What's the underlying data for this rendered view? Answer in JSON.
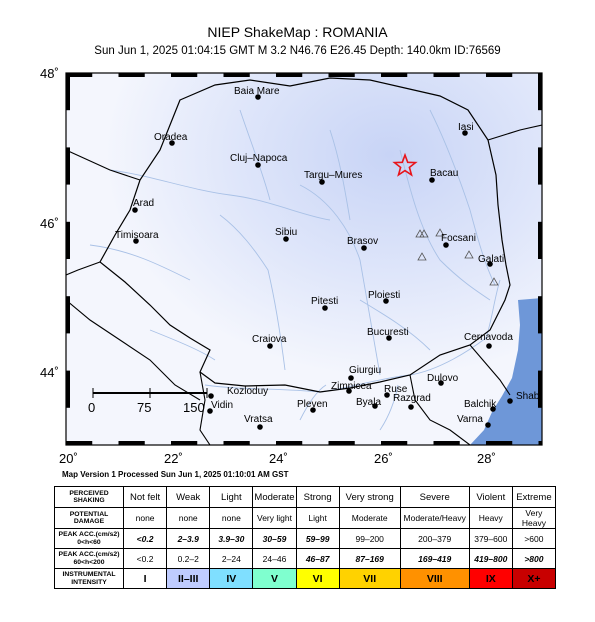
{
  "header": {
    "title": "NIEP ShakeMap : ROMANIA",
    "subtitle": "Sun Jun  1, 2025 01:04:15 GMT   M 3.2   N46.76 E26.45   Depth: 140.0km   ID:76569"
  },
  "axes": {
    "lat_labels": [
      "48˚",
      "46˚",
      "44˚"
    ],
    "lon_labels": [
      "20˚",
      "22˚",
      "24˚",
      "26˚",
      "28˚"
    ]
  },
  "scale_bar": {
    "labels": [
      "0",
      "75",
      "150"
    ]
  },
  "cities": [
    {
      "name": "Baia Mare"
    },
    {
      "name": "Oradea"
    },
    {
      "name": "Cluj–Napoca"
    },
    {
      "name": "Targu–Mures"
    },
    {
      "name": "Iasi"
    },
    {
      "name": "Bacau"
    },
    {
      "name": "Arad"
    },
    {
      "name": "Timisoara"
    },
    {
      "name": "Sibiu"
    },
    {
      "name": "Brasov"
    },
    {
      "name": "Focsani"
    },
    {
      "name": "Galati"
    },
    {
      "name": "Ploiesti"
    },
    {
      "name": "Pitesti"
    },
    {
      "name": "Bucuresti"
    },
    {
      "name": "Craiova"
    },
    {
      "name": "Cernavoda"
    },
    {
      "name": "Giurgiu"
    },
    {
      "name": "Zimnicea"
    },
    {
      "name": "Ruse"
    },
    {
      "name": "Dulovo"
    },
    {
      "name": "Kozloduy"
    },
    {
      "name": "Vidin"
    },
    {
      "name": "Pleven"
    },
    {
      "name": "Byala"
    },
    {
      "name": "Razgrad"
    },
    {
      "name": "Shabla"
    },
    {
      "name": "Balchik"
    },
    {
      "name": "Vratsa"
    },
    {
      "name": "Varna"
    }
  ],
  "epicenter": {
    "marker": "star-icon",
    "color": "#e8141a"
  },
  "map_version": "Map Version 1 Processed Sun Jun  1, 2025 01:10:01 AM GST",
  "legend": {
    "row_headers": {
      "perceived": "PERCEIVED SHAKING",
      "damage": "POTENTIAL DAMAGE",
      "acc1": "PEAK ACC.(cm/s2) 0<h<60",
      "acc2": "PEAK ACC.(cm/s2) 60<h<200",
      "intensity": "INSTRUMENTAL INTENSITY"
    },
    "columns": [
      {
        "shaking": "Not felt",
        "damage": "none",
        "acc1": "<0.2",
        "acc2": "<0.2",
        "intensity": "I",
        "color": "#ffffff"
      },
      {
        "shaking": "Weak",
        "damage": "none",
        "acc1": "2–3.9",
        "acc2": "0.2–2",
        "intensity": "II–III",
        "color": "#bfccff"
      },
      {
        "shaking": "Light",
        "damage": "none",
        "acc1": "3.9–30",
        "acc2": "2–24",
        "intensity": "IV",
        "color": "#7fdfff"
      },
      {
        "shaking": "Moderate",
        "damage": "Very light",
        "acc1": "30–59",
        "acc2": "24–46",
        "intensity": "V",
        "color": "#7fffcf"
      },
      {
        "shaking": "Strong",
        "damage": "Light",
        "acc1": "59–99",
        "acc2": "46–87",
        "intensity": "VI",
        "color": "#ffff00"
      },
      {
        "shaking": "Very strong",
        "damage": "Moderate",
        "acc1": "99–200",
        "acc2": "87–169",
        "intensity": "VII",
        "color": "#ffd200"
      },
      {
        "shaking": "Severe",
        "damage": "Moderate/Heavy",
        "acc1": "200–379",
        "acc2": "169–419",
        "intensity": "VIII",
        "color": "#ff9100"
      },
      {
        "shaking": "Violent",
        "damage": "Heavy",
        "acc1": "379–600",
        "acc2": "419–800",
        "intensity": "IX",
        "color": "#ff0000"
      },
      {
        "shaking": "Extreme",
        "damage": "Very Heavy",
        "acc1": ">600",
        "acc2": ">800",
        "intensity": "X+",
        "color": "#c80000"
      }
    ]
  }
}
